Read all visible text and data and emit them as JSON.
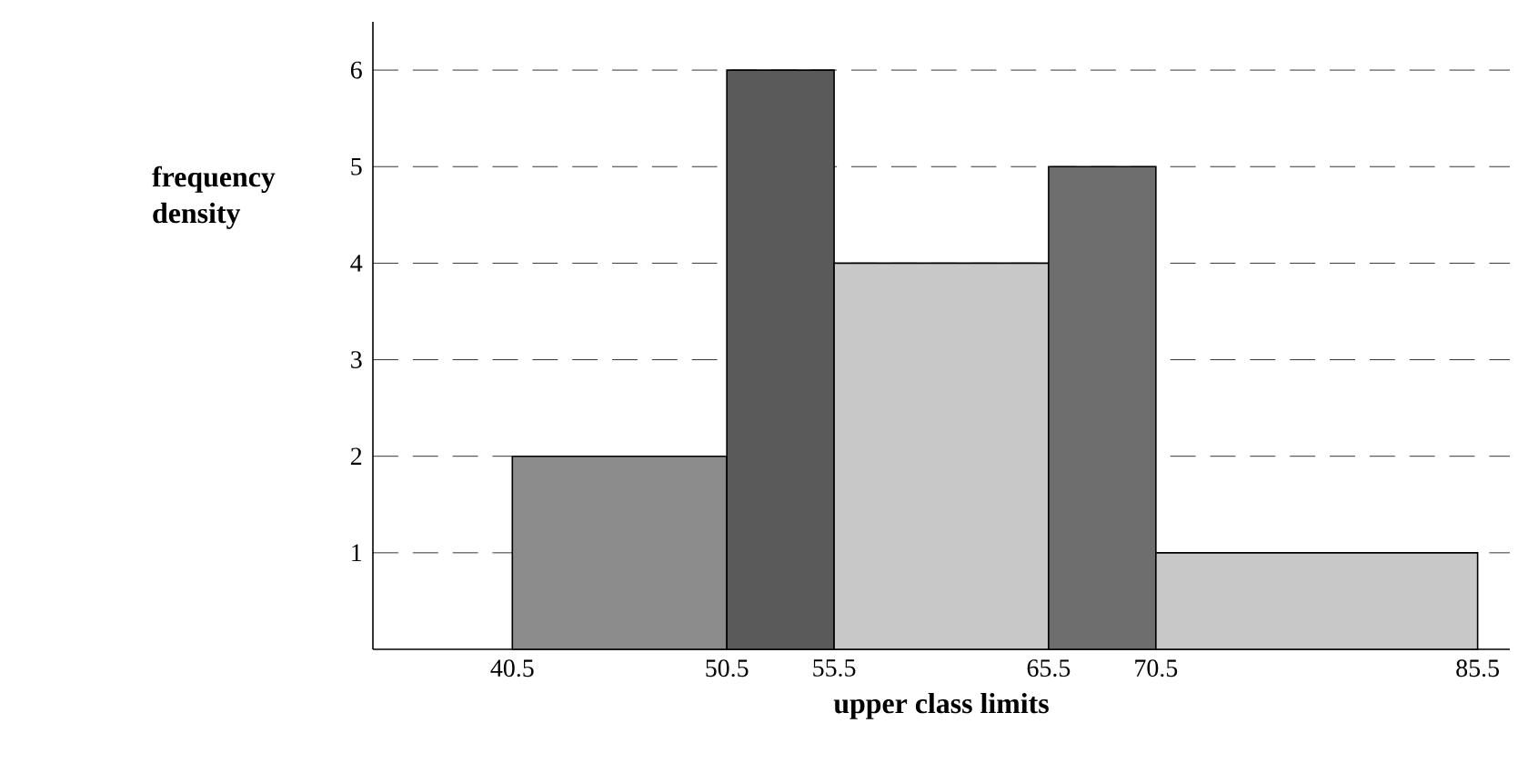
{
  "chart_data": {
    "type": "histogram",
    "xlabel": "upper class limits",
    "ylabel": "frequency density",
    "bins": [
      40.5,
      50.5,
      55.5,
      65.5,
      70.5,
      85.5
    ],
    "values": [
      2,
      6,
      4,
      5,
      1
    ],
    "colors": [
      "#8c8c8c",
      "#5a5a5a",
      "#c8c8c8",
      "#6e6e6e",
      "#c8c8c8"
    ],
    "xlim": [
      34,
      87
    ],
    "ylim": [
      0,
      6.5
    ],
    "xticks": [
      40.5,
      50.5,
      55.5,
      65.5,
      70.5,
      85.5
    ],
    "yticks": [
      1,
      2,
      3,
      4,
      5,
      6
    ],
    "ref_lines": [
      {
        "axis": "y",
        "value": 1,
        "line_style": "dashed"
      },
      {
        "axis": "y",
        "value": 2,
        "line_style": "dashed"
      },
      {
        "axis": "y",
        "value": 3,
        "line_style": "dashed"
      },
      {
        "axis": "y",
        "value": 4,
        "line_style": "dashed"
      },
      {
        "axis": "y",
        "value": 5,
        "line_style": "dashed"
      },
      {
        "axis": "y",
        "value": 6,
        "line_style": "dashed"
      }
    ],
    "tick_labels": true
  }
}
